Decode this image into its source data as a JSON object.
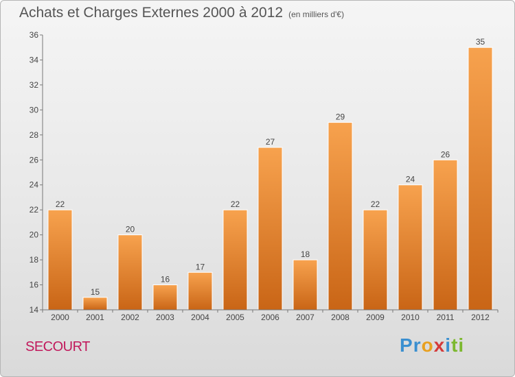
{
  "header": {
    "title": "Achats et Charges Externes 2000 à 2012",
    "subtitle": "(en milliers d'€)"
  },
  "footer": {
    "commune": "SECOURT",
    "brand": {
      "letters": [
        {
          "char": "P",
          "color": "#3a8fd0"
        },
        {
          "char": "r",
          "color": "#3a8fd0"
        },
        {
          "char": "o",
          "color": "#e8a020"
        },
        {
          "char": "x",
          "color": "#d43a3a"
        },
        {
          "char": "i",
          "color": "#3a8fd0"
        },
        {
          "char": "t",
          "color": "#7cb82f"
        },
        {
          "char": "i",
          "color": "#7cb82f"
        }
      ]
    }
  },
  "chart_data": {
    "type": "bar",
    "categories": [
      "2000",
      "2001",
      "2002",
      "2003",
      "2004",
      "2005",
      "2006",
      "2007",
      "2008",
      "2009",
      "2010",
      "2011",
      "2012"
    ],
    "values": [
      22,
      15,
      20,
      16,
      17,
      22,
      27,
      18,
      29,
      22,
      24,
      26,
      35
    ],
    "ylim": [
      14,
      36
    ],
    "yticks": [
      14,
      16,
      18,
      20,
      22,
      24,
      26,
      28,
      30,
      32,
      34,
      36
    ],
    "grid": false,
    "bar_color": "#f08a30"
  }
}
